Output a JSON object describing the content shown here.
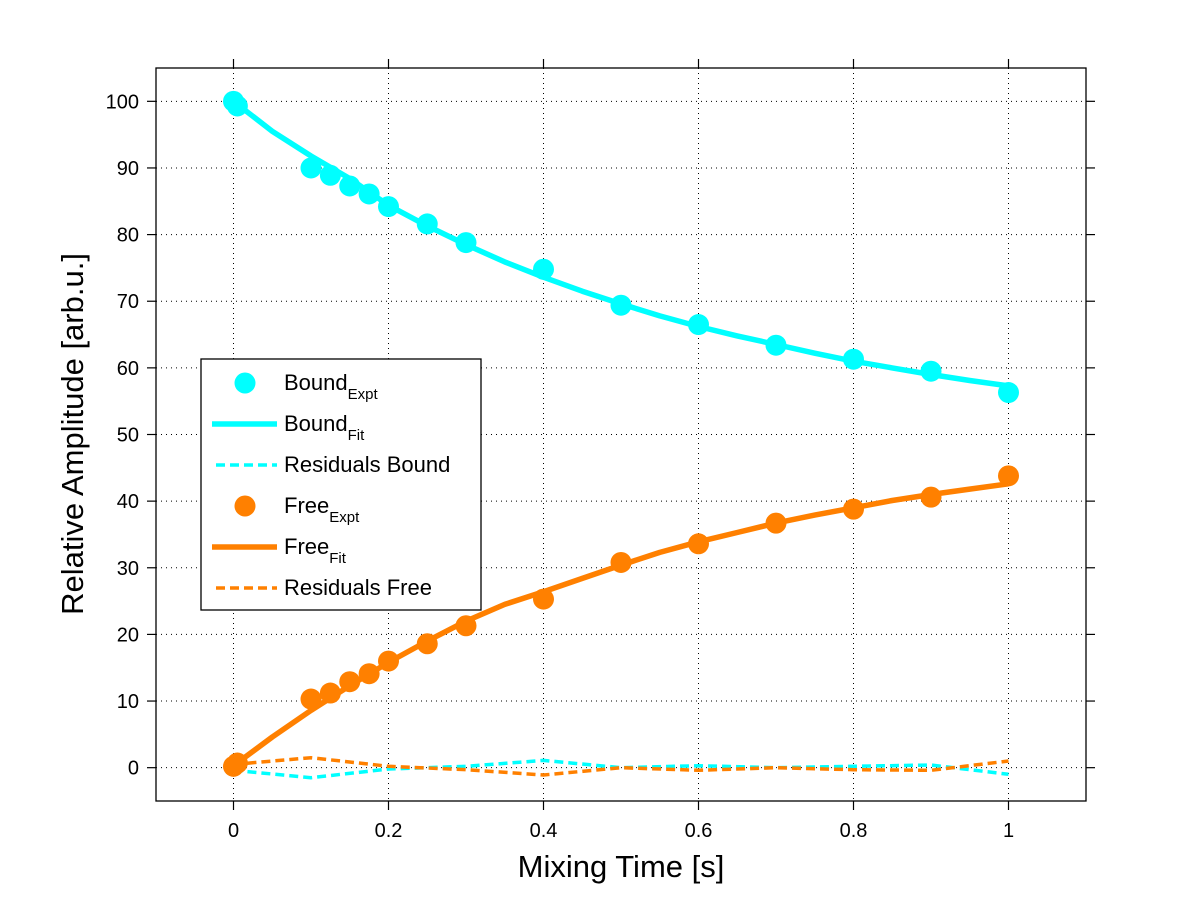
{
  "chart_data": {
    "type": "line",
    "title": "",
    "xlabel": "Mixing Time [s]",
    "ylabel": "Relative Amplitude [arb.u.]",
    "xlim": [
      -0.1,
      1.1
    ],
    "ylim": [
      -5,
      105
    ],
    "xticks": [
      0,
      0.2,
      0.4,
      0.6,
      0.8,
      1
    ],
    "xtick_labels": [
      "0",
      "0.2",
      "0.4",
      "0.6",
      "0.8",
      "1"
    ],
    "yticks": [
      0,
      10,
      20,
      30,
      40,
      50,
      60,
      70,
      80,
      90,
      100
    ],
    "ytick_labels": [
      "0",
      "10",
      "20",
      "30",
      "40",
      "50",
      "60",
      "70",
      "80",
      "90",
      "100"
    ],
    "grid": true,
    "legend_placement": "center-left",
    "colors": {
      "bound": "#00ffff",
      "free": "#ff8000"
    },
    "series": [
      {
        "name": "Bound",
        "label_main": "Bound",
        "label_sub": "Expt",
        "kind": "markers",
        "color": "#00ffff",
        "x": [
          0,
          0.005,
          0.1,
          0.125,
          0.15,
          0.175,
          0.2,
          0.25,
          0.3,
          0.4,
          0.5,
          0.6,
          0.7,
          0.8,
          0.9,
          1.0
        ],
        "y": [
          100,
          99.3,
          90.0,
          88.9,
          87.3,
          86.1,
          84.2,
          81.6,
          78.8,
          74.8,
          69.4,
          66.5,
          63.4,
          61.3,
          59.5,
          56.3
        ]
      },
      {
        "name": "Bound Fit",
        "label_main": "Bound",
        "label_sub": "Fit",
        "kind": "line",
        "color": "#00ffff",
        "x": [
          0,
          0.05,
          0.1,
          0.15,
          0.2,
          0.25,
          0.3,
          0.35,
          0.4,
          0.45,
          0.5,
          0.55,
          0.6,
          0.65,
          0.7,
          0.75,
          0.8,
          0.85,
          0.9,
          0.95,
          1.0
        ],
        "y": [
          100.0,
          95.5,
          91.8,
          88.4,
          84.4,
          81.3,
          78.5,
          75.9,
          73.6,
          71.5,
          69.6,
          67.8,
          66.2,
          64.8,
          63.5,
          62.2,
          61.0,
          60.0,
          59.0,
          58.1,
          57.3
        ]
      },
      {
        "name": "Residuals Bound",
        "label_main": "Residuals Bound",
        "label_sub": "",
        "kind": "dashed",
        "color": "#00ffff",
        "x": [
          0,
          0.1,
          0.2,
          0.3,
          0.4,
          0.5,
          0.6,
          0.7,
          0.8,
          0.9,
          1.0
        ],
        "y": [
          -0.4,
          -1.5,
          -0.2,
          0.2,
          1.1,
          0.0,
          0.3,
          0.0,
          0.2,
          0.4,
          -1.0
        ]
      },
      {
        "name": "Free",
        "label_main": "Free",
        "label_sub": "Expt",
        "kind": "markers",
        "color": "#ff8000",
        "x": [
          0,
          0.005,
          0.1,
          0.125,
          0.15,
          0.175,
          0.2,
          0.25,
          0.3,
          0.4,
          0.5,
          0.6,
          0.7,
          0.8,
          0.9,
          1.0
        ],
        "y": [
          0.2,
          0.7,
          10.3,
          11.2,
          12.9,
          14.1,
          16.0,
          18.6,
          21.3,
          25.3,
          30.8,
          33.6,
          36.7,
          38.8,
          40.6,
          43.8
        ]
      },
      {
        "name": "Free Fit",
        "label_main": "Free",
        "label_sub": "Fit",
        "kind": "line",
        "color": "#ff8000",
        "x": [
          0,
          0.05,
          0.1,
          0.15,
          0.2,
          0.25,
          0.3,
          0.35,
          0.4,
          0.45,
          0.5,
          0.55,
          0.6,
          0.65,
          0.7,
          0.75,
          0.8,
          0.85,
          0.9,
          0.95,
          1.0
        ],
        "y": [
          0.3,
          4.6,
          8.6,
          12.3,
          15.8,
          19.0,
          22.0,
          24.5,
          26.4,
          28.4,
          30.4,
          32.3,
          33.9,
          35.3,
          36.7,
          37.9,
          39.0,
          40.1,
          41.0,
          41.8,
          42.6
        ]
      },
      {
        "name": "Residuals Free",
        "label_main": "Residuals Free",
        "label_sub": "",
        "kind": "dashed",
        "color": "#ff8000",
        "x": [
          0,
          0.1,
          0.2,
          0.3,
          0.4,
          0.5,
          0.6,
          0.7,
          0.8,
          0.9,
          1.0
        ],
        "y": [
          0.5,
          1.5,
          0.2,
          -0.3,
          -1.1,
          0.0,
          -0.4,
          0.0,
          -0.3,
          -0.4,
          1.0
        ]
      }
    ]
  }
}
